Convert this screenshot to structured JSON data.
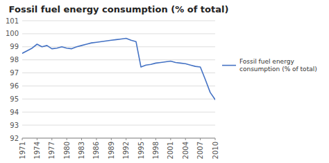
{
  "chart_data": {
    "type": "line",
    "title": "Fossil fuel energy consumption (% of total)",
    "x": [
      1971,
      1972,
      1973,
      1974,
      1975,
      1976,
      1977,
      1978,
      1979,
      1980,
      1981,
      1982,
      1983,
      1984,
      1985,
      1986,
      1987,
      1988,
      1989,
      1990,
      1991,
      1992,
      1993,
      1994,
      1995,
      1996,
      1997,
      1998,
      1999,
      2000,
      2001,
      2002,
      2003,
      2004,
      2005,
      2006,
      2007,
      2008,
      2009,
      2010
    ],
    "series": [
      {
        "name": "Fossil fuel energy\nconsumption (% of total)",
        "color": "#4472C4",
        "values": [
          98.5,
          98.7,
          98.9,
          99.2,
          99.0,
          99.1,
          98.85,
          98.9,
          99.0,
          98.9,
          98.85,
          99.0,
          99.1,
          99.2,
          99.3,
          99.35,
          99.4,
          99.45,
          99.5,
          99.55,
          99.6,
          99.65,
          99.5,
          99.4,
          97.45,
          97.6,
          97.65,
          97.75,
          97.8,
          97.85,
          97.9,
          97.8,
          97.75,
          97.7,
          97.6,
          97.5,
          97.45,
          96.5,
          95.5,
          94.95
        ]
      }
    ],
    "xlim": [
      1971,
      2010
    ],
    "xticks": [
      1971,
      1974,
      1977,
      1980,
      1983,
      1986,
      1989,
      1992,
      1995,
      1998,
      2001,
      2004,
      2007,
      2010
    ],
    "ylim": [
      92,
      101
    ],
    "yticks": [
      92,
      93,
      94,
      95,
      96,
      97,
      98,
      99,
      100,
      101
    ],
    "grid": true,
    "legend": "right"
  }
}
